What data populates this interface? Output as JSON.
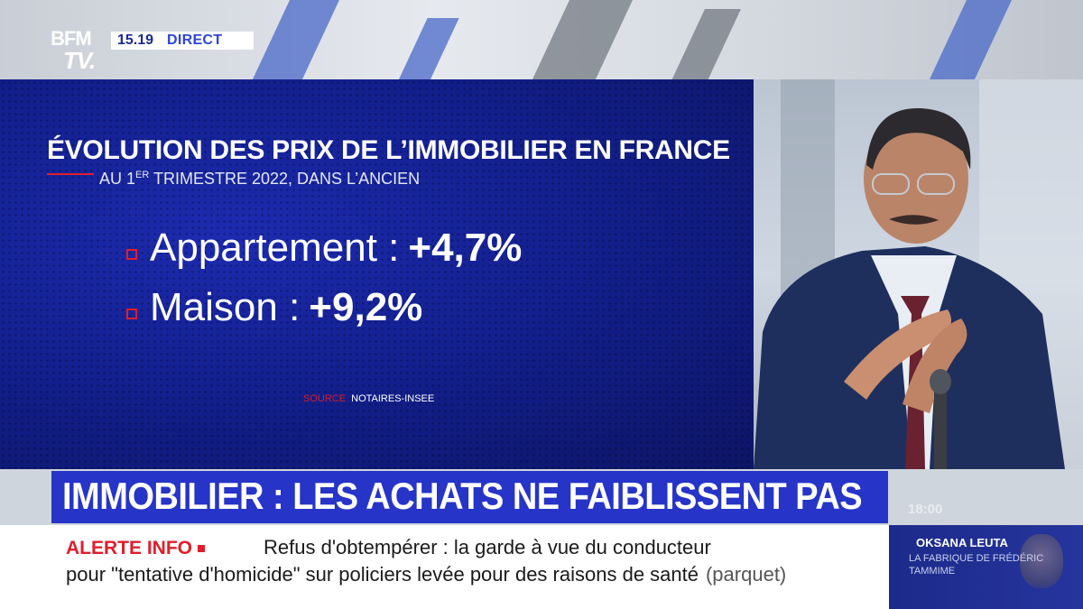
{
  "channel": {
    "logo_line1": "BFM",
    "logo_line2": "TV.",
    "time": "15.19",
    "live_label": "DIRECT"
  },
  "graphic": {
    "title": "ÉVOLUTION DES PRIX DE L’IMMOBILIER EN FRANCE",
    "subtitle_pre": "AU 1",
    "subtitle_sup": "ER",
    "subtitle_post": " TRIMESTRE 2022, DANS L’ANCIEN",
    "items": [
      {
        "label": "Appartement :",
        "value": "+4,7%"
      },
      {
        "label": "Maison :",
        "value": "+9,2%"
      }
    ],
    "source_label": "SOURCE",
    "source_text": "NOTAIRES-INSEE"
  },
  "headline": "IMMOBILIER : LES ACHATS NE FAIBLISSENT PAS",
  "clock": "18:00",
  "ticker": {
    "alert_label": "ALERTE INFO",
    "line1": "Refus d'obtempérer : la garde à vue du conducteur",
    "line2": "pour \"tentative d'homicide\" sur policiers levée pour des raisons de santé",
    "source": "(parquet)"
  },
  "promo": {
    "name": "OKSANA LEUTA",
    "subtitle": "LA FABRIQUE DE FRÉDÉRIC TAMMIME"
  },
  "colors": {
    "brand_blue": "#2634c8",
    "alert_red": "#e01e2b",
    "graphic_bg": "#13208f"
  }
}
